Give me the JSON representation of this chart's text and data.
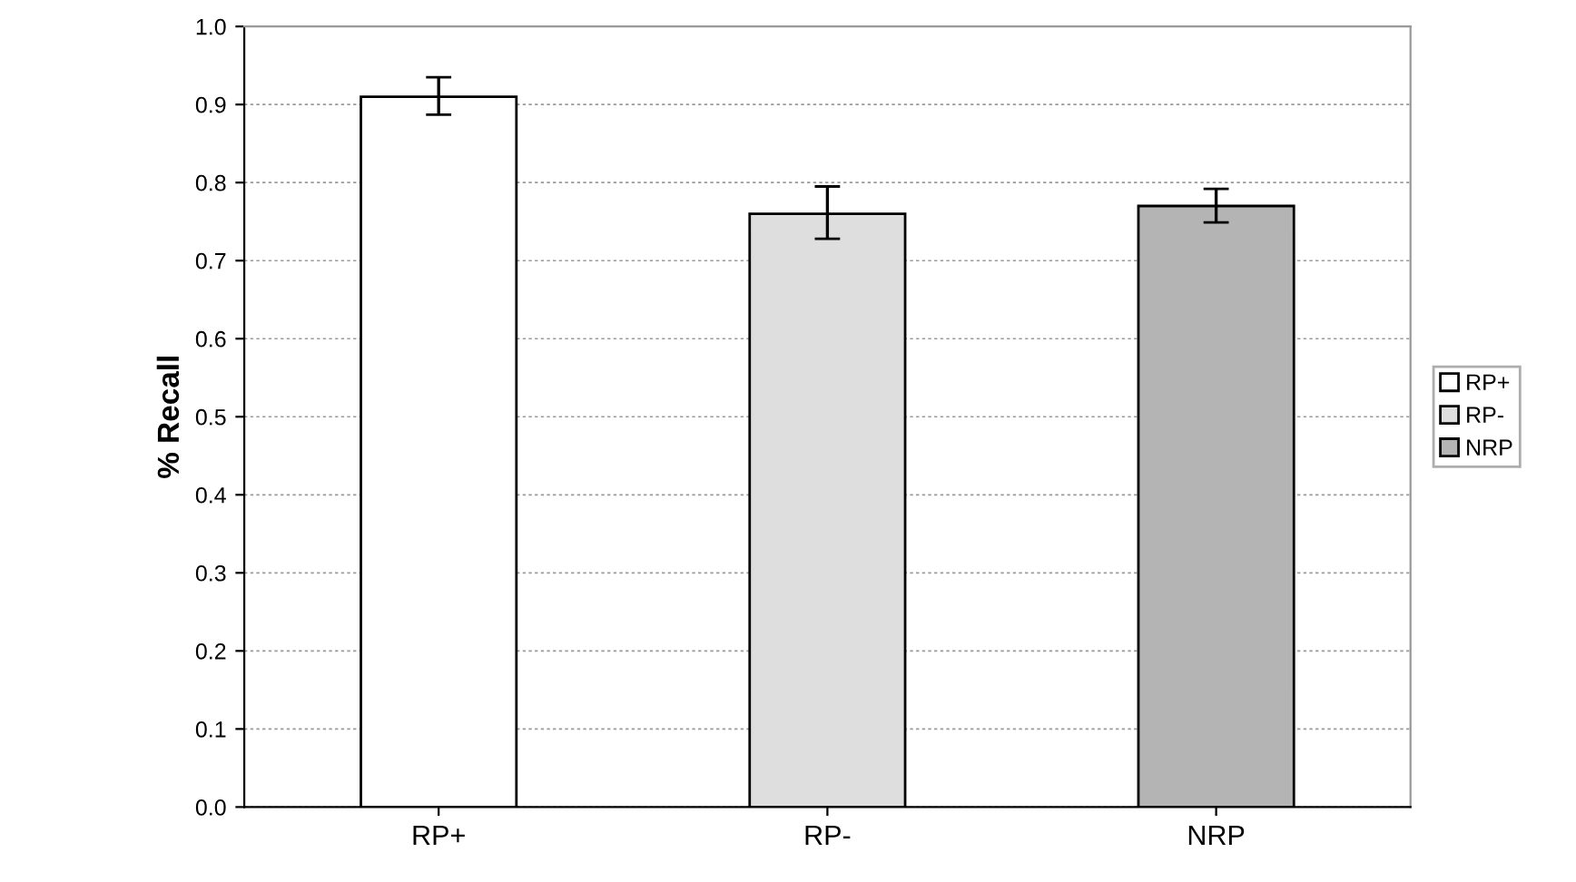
{
  "chart_data": {
    "type": "bar",
    "ylabel": "% Recall",
    "categories": [
      "RP+",
      "RP-",
      "NRP"
    ],
    "series": [
      {
        "name": "RP+",
        "color": "#ffffff",
        "values": [
          0.91,
          null,
          null
        ],
        "errors": [
          [
            0.887,
            0.935
          ],
          null,
          null
        ]
      },
      {
        "name": "RP-",
        "color": "#dedede",
        "values": [
          null,
          0.76,
          null
        ],
        "errors": [
          null,
          [
            0.728,
            0.795
          ],
          null
        ]
      },
      {
        "name": "NRP",
        "color": "#b4b4b4",
        "values": [
          null,
          null,
          0.77
        ],
        "errors": [
          null,
          null,
          [
            0.749,
            0.792
          ]
        ]
      }
    ],
    "ylim": [
      0,
      1
    ],
    "yticks": [
      {
        "value": 0,
        "label": "0.0"
      },
      0.1,
      0.2,
      0.3,
      0.4,
      0.5,
      0.6,
      0.7,
      0.8,
      0.9,
      {
        "value": 1,
        "label": "1.0"
      }
    ],
    "grid": "y",
    "legend": "right"
  }
}
